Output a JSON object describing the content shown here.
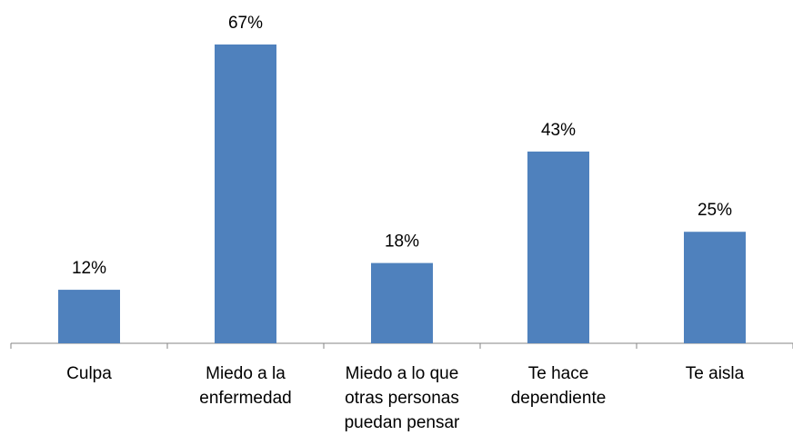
{
  "chart_data": {
    "type": "bar",
    "categories": [
      "Culpa",
      "Miedo a la enfermedad",
      "Miedo a lo que otras personas puedan pensar",
      "Te hace dependiente",
      "Te aisla"
    ],
    "values": [
      12,
      67,
      18,
      43,
      25
    ],
    "value_labels": [
      "12%",
      "67%",
      "18%",
      "43%",
      "25%"
    ],
    "color": "#4f81bd"
  }
}
